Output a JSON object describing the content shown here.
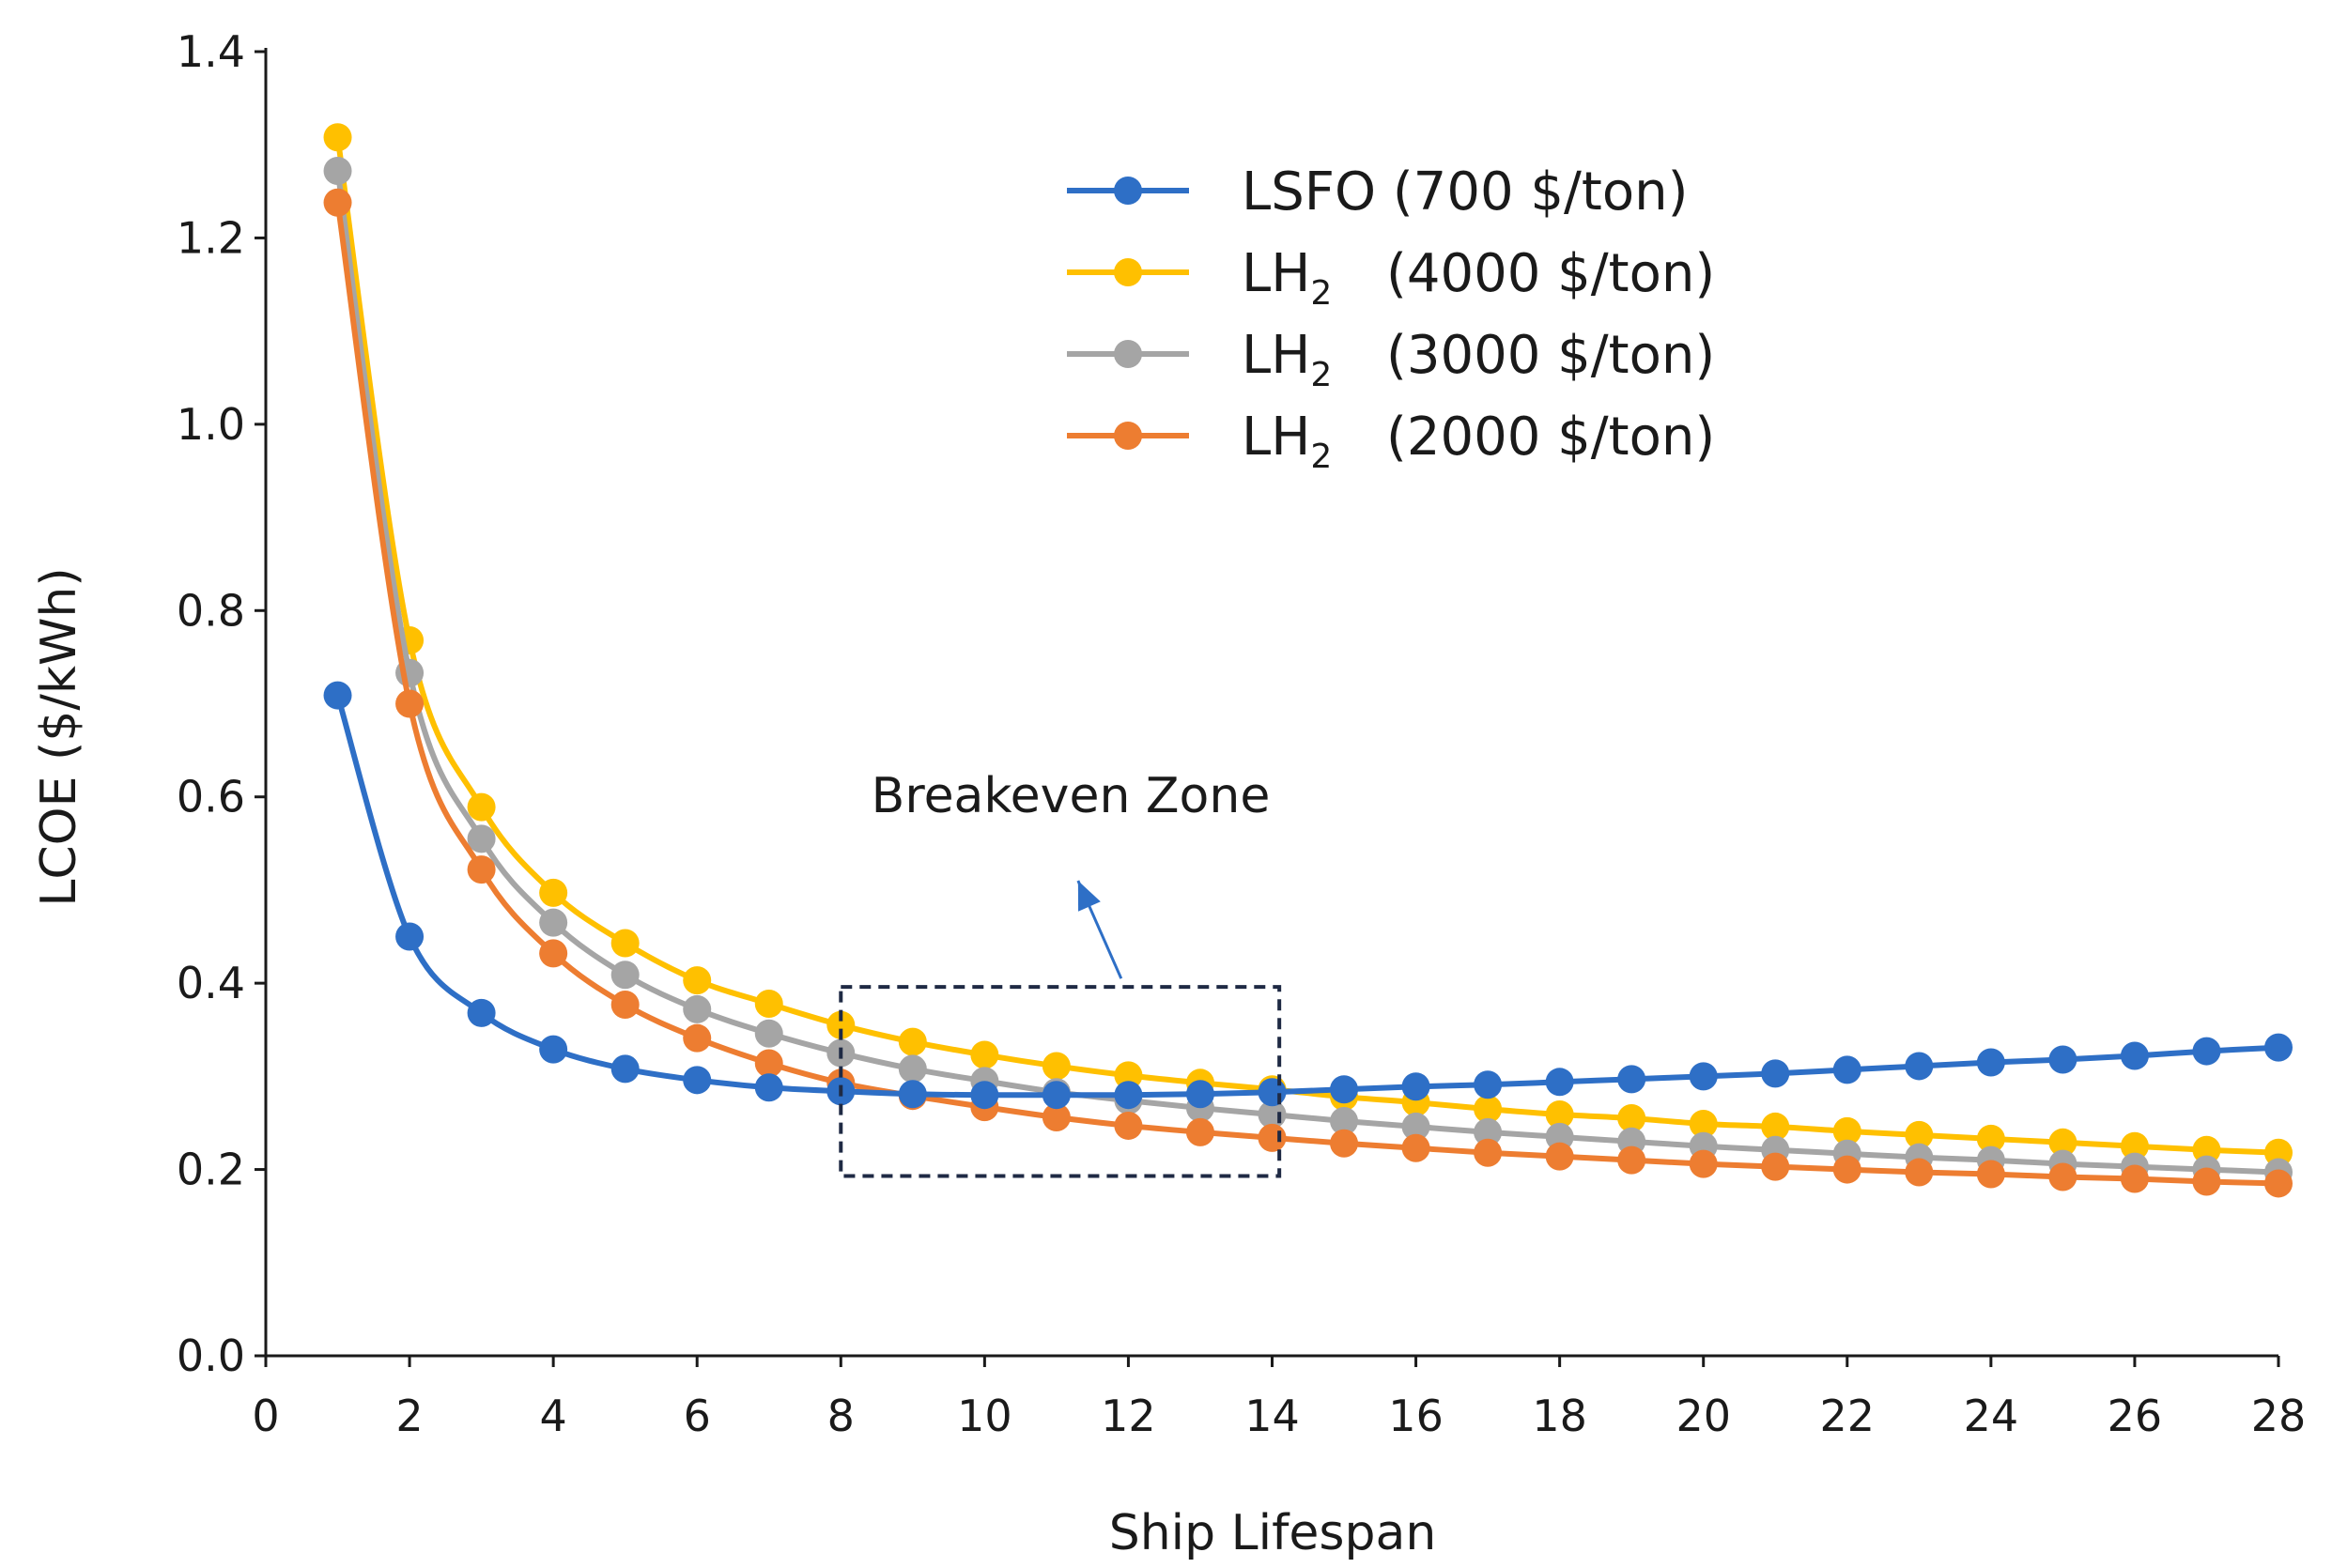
{
  "chart_data": {
    "type": "line",
    "title": "",
    "xlabel": "Ship Lifespan",
    "ylabel": "LCOE ($/kWh)",
    "xlim": [
      0,
      28
    ],
    "ylim": [
      0,
      1.4
    ],
    "xticks": [
      0,
      2,
      4,
      6,
      8,
      10,
      12,
      14,
      16,
      18,
      20,
      22,
      24,
      26,
      28
    ],
    "yticks": [
      "0.0",
      "0.2",
      "0.4",
      "0.6",
      "0.8",
      "1.0",
      "1.2",
      "1.4"
    ],
    "grid": false,
    "legend_position": "top-right",
    "x": [
      1,
      2,
      3,
      4,
      5,
      6,
      7,
      8,
      9,
      10,
      11,
      12,
      13,
      14,
      15,
      16,
      17,
      18,
      19,
      20,
      21,
      22,
      23,
      24,
      25,
      26,
      27,
      28
    ],
    "series": [
      {
        "name": "LSFO (700 $/ton)",
        "label_main": "LSFO (700 $/ton)",
        "label_sub": "",
        "label_price": "",
        "color": "#2e6fc6",
        "values": [
          0.709,
          0.45,
          0.368,
          0.329,
          0.308,
          0.296,
          0.288,
          0.284,
          0.281,
          0.28,
          0.28,
          0.28,
          0.281,
          0.283,
          0.286,
          0.289,
          0.291,
          0.294,
          0.297,
          0.3,
          0.303,
          0.307,
          0.311,
          0.315,
          0.318,
          0.322,
          0.327,
          0.331
        ]
      },
      {
        "name": "LH2 (4000 $/ton)",
        "label_main": "LH",
        "label_sub": "2",
        "label_price": "(4000 $/ton)",
        "color": "#ffc000",
        "values": [
          1.308,
          0.768,
          0.589,
          0.497,
          0.443,
          0.403,
          0.378,
          0.355,
          0.337,
          0.323,
          0.311,
          0.301,
          0.293,
          0.286,
          0.278,
          0.272,
          0.265,
          0.259,
          0.255,
          0.249,
          0.246,
          0.241,
          0.237,
          0.233,
          0.229,
          0.225,
          0.221,
          0.218
        ]
      },
      {
        "name": "LH2 (3000 $/ton)",
        "label_main": "LH",
        "label_sub": "2",
        "label_price": "(3000 $/ton)",
        "color": "#a5a5a5",
        "values": [
          1.272,
          0.733,
          0.555,
          0.465,
          0.409,
          0.372,
          0.346,
          0.325,
          0.308,
          0.295,
          0.283,
          0.274,
          0.266,
          0.259,
          0.252,
          0.246,
          0.24,
          0.235,
          0.23,
          0.225,
          0.221,
          0.217,
          0.213,
          0.21,
          0.206,
          0.203,
          0.2,
          0.197
        ]
      },
      {
        "name": "LH2 (2000 $/ton)",
        "label_main": "LH",
        "label_sub": "2",
        "label_price": "(2000 $/ton)",
        "color": "#ed7d31",
        "values": [
          1.238,
          0.7,
          0.522,
          0.432,
          0.377,
          0.341,
          0.314,
          0.293,
          0.279,
          0.267,
          0.256,
          0.247,
          0.24,
          0.234,
          0.228,
          0.223,
          0.218,
          0.214,
          0.21,
          0.206,
          0.203,
          0.2,
          0.197,
          0.195,
          0.192,
          0.19,
          0.187,
          0.185
        ]
      }
    ],
    "annotations": [
      {
        "text": "Breakeven Zone",
        "box_x": [
          8,
          14.1
        ],
        "box_y": [
          0.193,
          0.396
        ],
        "arrow_to": [
          11.3,
          0.51
        ],
        "arrow_from": [
          11.9,
          0.405
        ]
      }
    ]
  },
  "colors": {
    "axis": "#1a1a1a",
    "annotation_box": "#1f2a44",
    "arrow": "#2e6fc6"
  }
}
